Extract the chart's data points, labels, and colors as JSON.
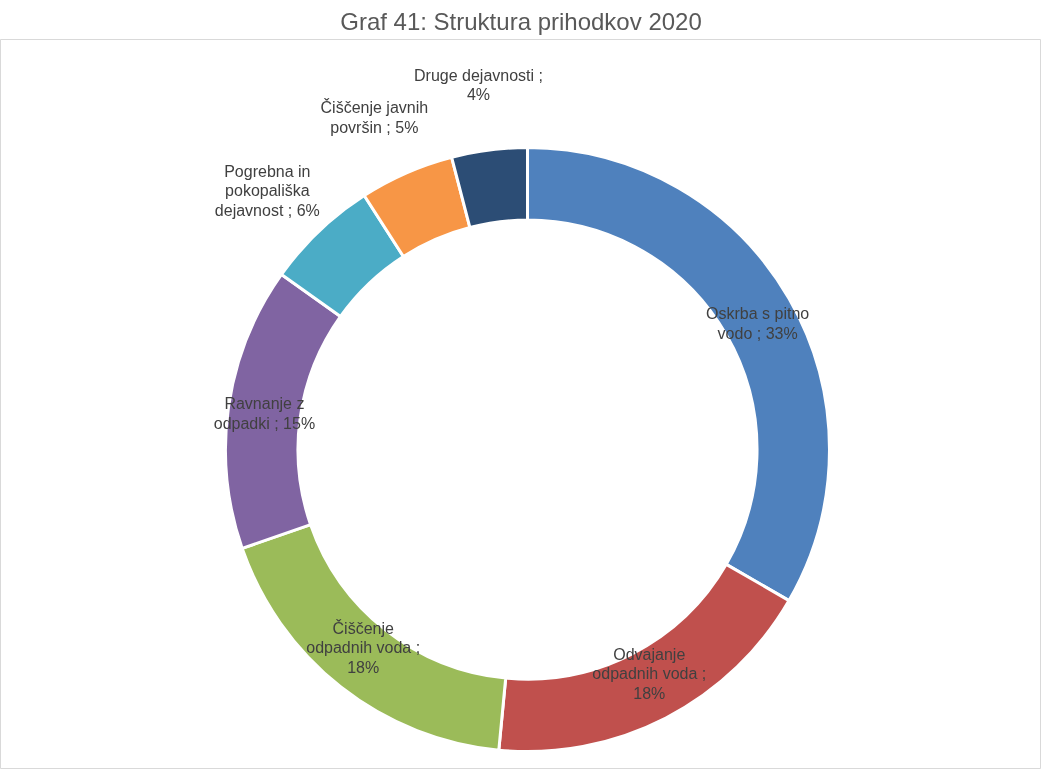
{
  "chart_data": {
    "type": "donut",
    "title": "Graf 41: Struktura prihodkov 2020",
    "categories": [
      "Oskrba s pitno vodo",
      "Odvajanje odpadnih voda",
      "Čiščenje odpadnih voda",
      "Ravnanje z odpadki",
      "Pogrebna in pokopališka dejavnost ",
      "Čiščenje javnih površin",
      "Druge dejavnosti"
    ],
    "values": [
      33,
      18,
      18,
      15,
      6,
      5,
      4
    ],
    "colors": [
      "#4f81bd",
      "#c0504d",
      "#9bbb59",
      "#8064a2",
      "#4bacc6",
      "#f79646",
      "#2c4d75"
    ],
    "value_labels": [
      "; 33%",
      "; 18%",
      "; 18%",
      "; 15%",
      "; 6%",
      "; 5%",
      "; 4%"
    ]
  }
}
